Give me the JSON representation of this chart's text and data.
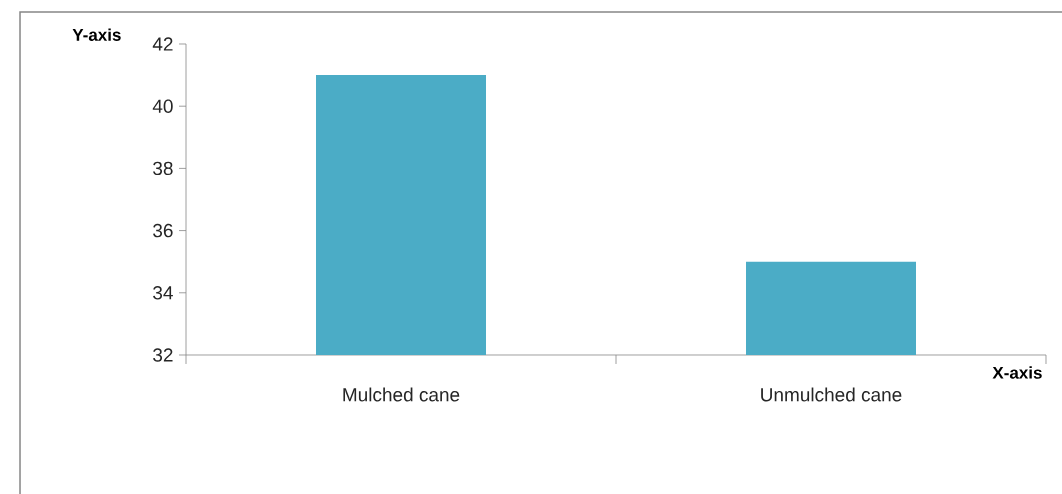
{
  "chart_data": {
    "type": "bar",
    "xlabel": "X-axis",
    "ylabel": "Y-axis",
    "categories": [
      "Mulched cane",
      "Unmulched cane"
    ],
    "values": [
      41,
      35
    ],
    "color": "#4bacc6",
    "ylim": [
      32,
      42
    ],
    "yticks": [
      32,
      34,
      36,
      38,
      40,
      42
    ]
  }
}
